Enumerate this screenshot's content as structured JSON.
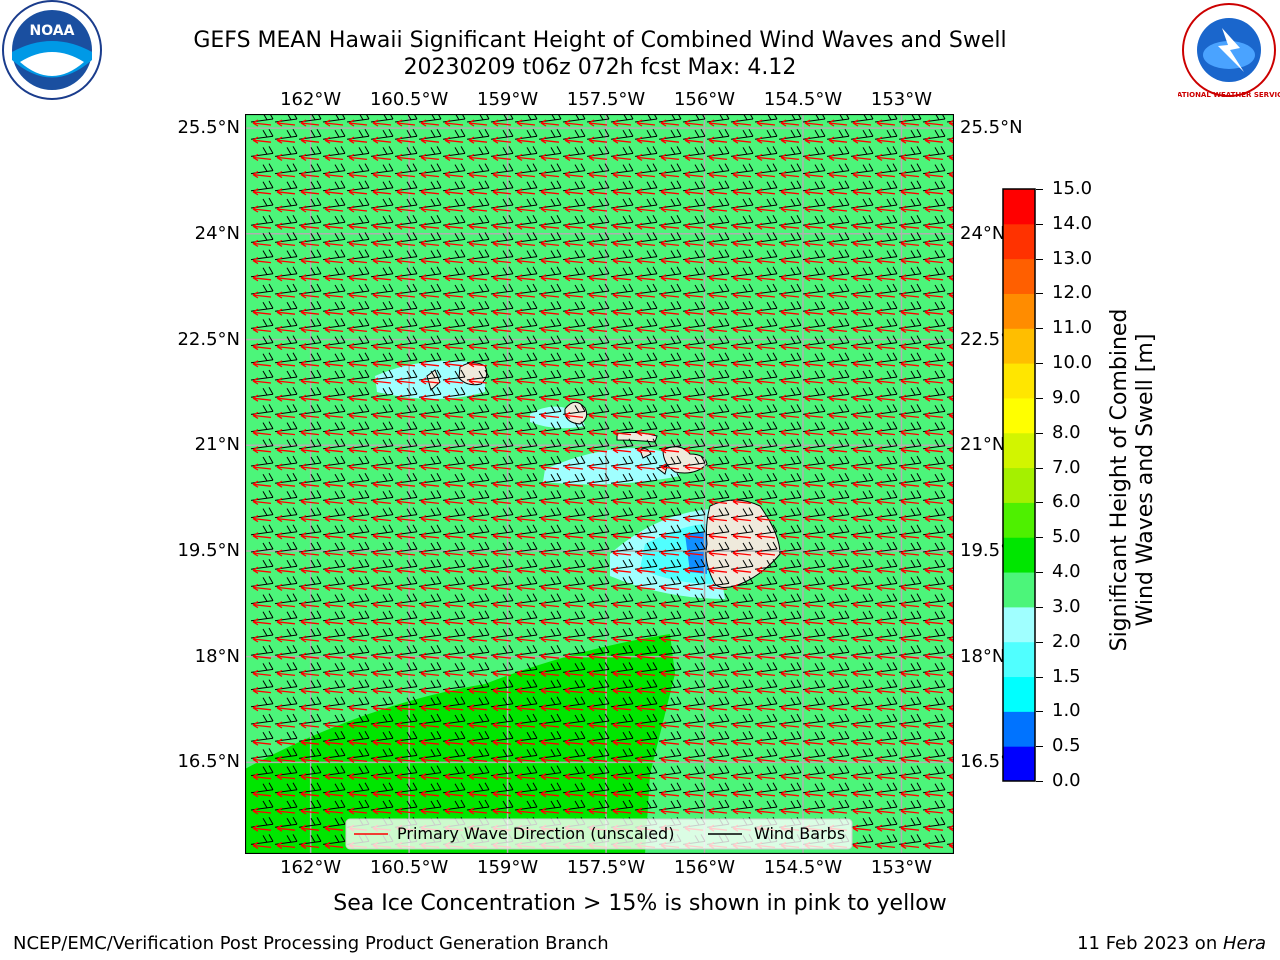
{
  "header": {
    "title_line1": "GEFS MEAN Hawaii Significant Height of Combined Wind Waves and Swell",
    "title_line2": "20230209 t06z 072h fcst   Max: 4.12"
  },
  "logos": {
    "left": {
      "name": "noaa-logo",
      "text": "NOAA"
    },
    "right": {
      "name": "nws-logo",
      "text": "NATIONAL WEATHER SERVICE"
    }
  },
  "map": {
    "lon_ticks": [
      "162°W",
      "160.5°W",
      "159°W",
      "157.5°W",
      "156°W",
      "154.5°W",
      "153°W"
    ],
    "lat_ticks": [
      "25.5°N",
      "24°N",
      "22.5°N",
      "21°N",
      "19.5°N",
      "18°N",
      "16.5°N"
    ],
    "lon_values": [
      -162,
      -160.5,
      -159,
      -157.5,
      -156,
      -154.5,
      -153
    ],
    "lat_values": [
      25.5,
      24,
      22.5,
      21,
      19.5,
      18,
      16.5
    ],
    "lon_range": [
      -163,
      -152.2
    ],
    "lat_range": [
      15.2,
      25.7
    ],
    "background_color": "#4cf57a",
    "high_color": "#00e600",
    "land_color": "#efeadc",
    "grid_color": "#b0b0b0",
    "legend": {
      "wave_label": "Primary Wave Direction (unscaled)",
      "barb_label": "Wind Barbs",
      "wave_color": "#ff0000",
      "barb_color": "#000000"
    }
  },
  "colorbar": {
    "label_line1": "Significant Height of Combined",
    "label_line2": "Wind Waves and Swell [m]",
    "ticks": [
      "0.0",
      "0.5",
      "1.0",
      "1.5",
      "2.0",
      "3.0",
      "4.0",
      "5.0",
      "6.0",
      "7.0",
      "8.0",
      "9.0",
      "10.0",
      "11.0",
      "12.0",
      "13.0",
      "14.0",
      "15.0"
    ],
    "colors": [
      "#0000ff",
      "#0073ff",
      "#00ffff",
      "#50ffff",
      "#a0ffff",
      "#4cf57a",
      "#00e600",
      "#4ef000",
      "#a5f000",
      "#d2f500",
      "#ffff00",
      "#ffe600",
      "#ffbe00",
      "#ff8c00",
      "#ff5f00",
      "#ff3200",
      "#ff0000"
    ]
  },
  "footer": {
    "ice_note": "Sea Ice Concentration > 15% is shown in pink to yellow",
    "left": "NCEP/EMC/Verification Post Processing Product Generation Branch",
    "date": "11 Feb 2023 on ",
    "machine": "Hera"
  }
}
